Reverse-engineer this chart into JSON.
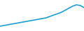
{
  "values": [
    38,
    37,
    36,
    35,
    34,
    33,
    32,
    31,
    30,
    29,
    28,
    27,
    26,
    24,
    22,
    20,
    18,
    15,
    12,
    9,
    7,
    8,
    11
  ],
  "line_color": "#1a9ed4",
  "line_width": 1.2,
  "background_color": "#ffffff",
  "ylim_min": 0,
  "ylim_max": 45
}
